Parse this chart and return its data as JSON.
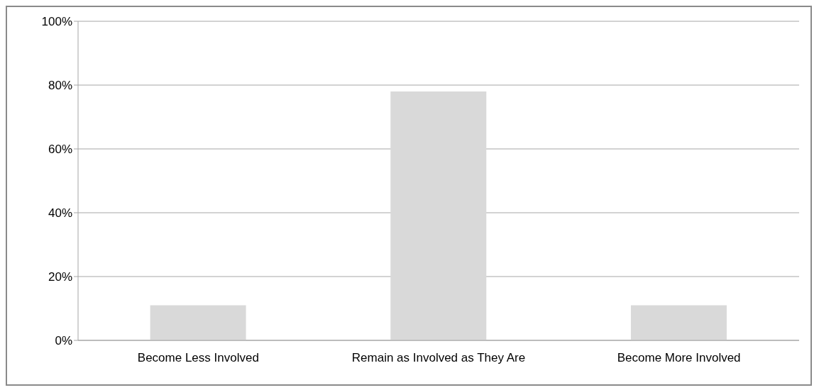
{
  "chart_data": {
    "type": "bar",
    "categories": [
      "Become Less Involved",
      "Remain as Involved as They Are",
      "Become More Involved"
    ],
    "values": [
      11,
      78,
      11
    ],
    "color": "#d9d9d9",
    "ylim": [
      0,
      100
    ],
    "yticks": [
      {
        "value": 0,
        "label": "0%"
      },
      {
        "value": 20,
        "label": "20%"
      },
      {
        "value": 40,
        "label": "40%"
      },
      {
        "value": 60,
        "label": "60%"
      },
      {
        "value": 80,
        "label": "80%"
      },
      {
        "value": 100,
        "label": "100%"
      }
    ],
    "grid": "y",
    "legend": false
  }
}
